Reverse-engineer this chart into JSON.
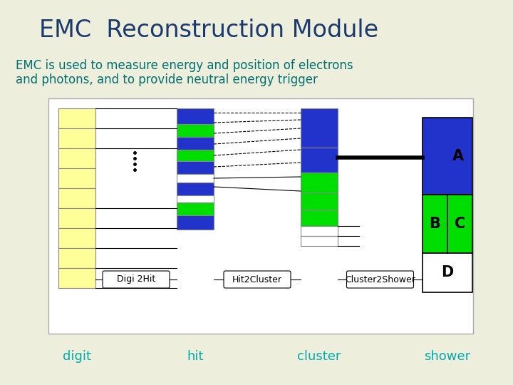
{
  "title": "EMC  Reconstruction Module",
  "subtitle_line1": "EMC is used to measure energy and position of electrons",
  "subtitle_line2": "and photons, and to provide neutral energy trigger",
  "bg_color": "#eeeedd",
  "title_color": "#1a3a6e",
  "subtitle_color": "#007070",
  "label_color": "#00aaaa",
  "blue": "#2233cc",
  "green": "#00dd00",
  "yellow": "#ffff99",
  "white": "#ffffff",
  "digit_label": "digit",
  "hit_label": "hit",
  "cluster_label": "cluster",
  "shower_label": "shower",
  "digi2hit_label": "Digi 2Hit",
  "hit2cluster_label": "Hit2Cluster",
  "cluster2shower_label": "Cluster2Shower",
  "shower_A": "A",
  "shower_B": "B",
  "shower_C": "C",
  "shower_D": "D",
  "figw": 7.2,
  "figh": 5.4,
  "dpi": 100
}
